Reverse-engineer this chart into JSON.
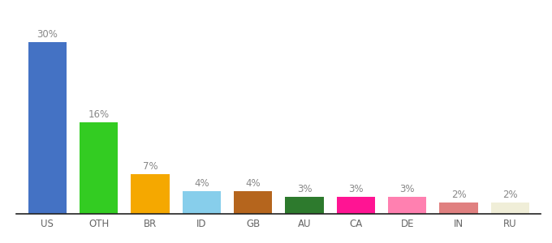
{
  "categories": [
    "US",
    "OTH",
    "BR",
    "ID",
    "GB",
    "AU",
    "CA",
    "DE",
    "IN",
    "RU"
  ],
  "values": [
    30,
    16,
    7,
    4,
    4,
    3,
    3,
    3,
    2,
    2
  ],
  "bar_colors": [
    "#4472c4",
    "#33cc22",
    "#f5a800",
    "#87ceeb",
    "#b5651d",
    "#2d7a2d",
    "#ff1493",
    "#ff80b0",
    "#e08080",
    "#f0eed8"
  ],
  "label_color": "#888888",
  "background_color": "#ffffff",
  "ylim": [
    0,
    34
  ],
  "bar_width": 0.75,
  "label_fontsize": 8.5,
  "tick_fontsize": 8.5,
  "figsize": [
    6.8,
    3.0
  ],
  "dpi": 100
}
